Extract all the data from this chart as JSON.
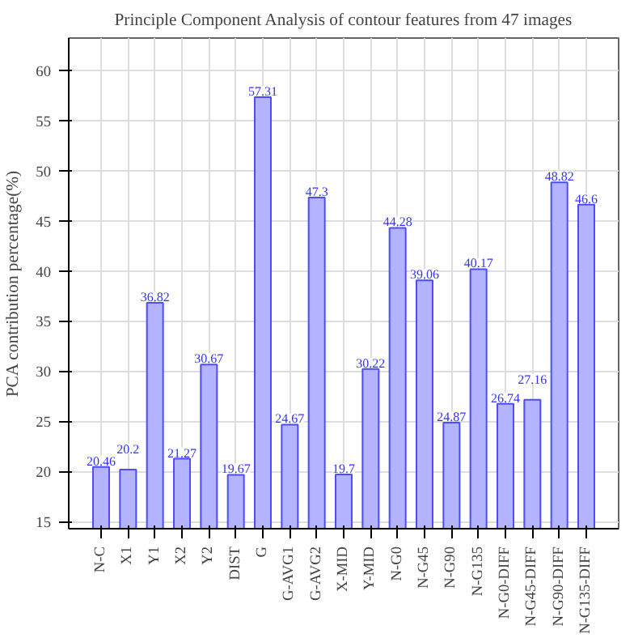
{
  "chart_data": {
    "type": "bar",
    "title": "Principle Component Analysis of contour features from 47 images",
    "ylabel": "PCA contribution percentage(%)",
    "categories": [
      "N-C",
      "X1",
      "Y1",
      "X2",
      "Y2",
      "DIST",
      "G",
      "G-AVG1",
      "G-AVG2",
      "X-MID",
      "Y-MID",
      "N-G0",
      "N-G45",
      "N-G90",
      "N-G135",
      "N-G0-DIFF",
      "N-G45-DIFF",
      "N-G90-DIFF",
      "N-G135-DIFF"
    ],
    "series": [
      {
        "color": "#b3b3ff",
        "values": [
          20.46,
          20.2,
          36.82,
          21.27,
          30.67,
          19.67,
          57.31,
          24.67,
          47.3,
          19.7,
          30.22,
          44.28,
          39.06,
          24.87,
          40.17,
          26.74,
          27.16,
          48.82,
          46.6
        ]
      }
    ],
    "ylim": [
      14.3,
      63.2
    ],
    "yticks": [
      15,
      20,
      25,
      30,
      35,
      40,
      45,
      50,
      55,
      60
    ],
    "grid": true,
    "data_labels": true
  }
}
